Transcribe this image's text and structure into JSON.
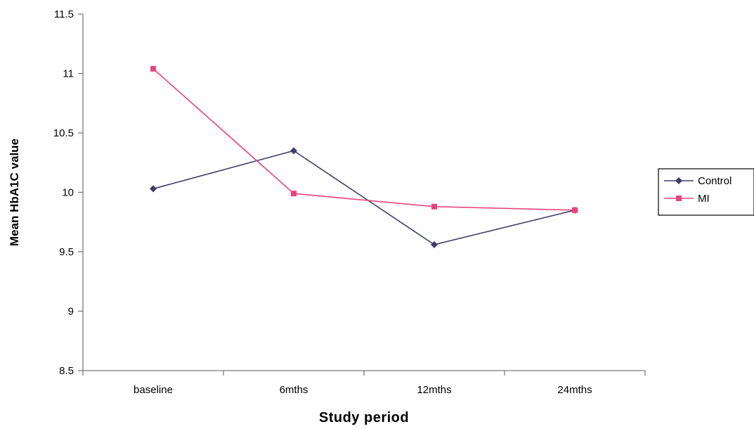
{
  "chart_data": {
    "type": "line",
    "categories": [
      "baseline",
      "6mths",
      "12mths",
      "24mths"
    ],
    "series": [
      {
        "name": "Control",
        "values": [
          10.03,
          10.35,
          9.56,
          9.85
        ],
        "color": "#3d3d66",
        "marker": "diamond"
      },
      {
        "name": "MI",
        "values": [
          11.04,
          9.99,
          9.88,
          9.85
        ],
        "color": "#e8457d",
        "marker": "square"
      }
    ],
    "y_ticks": [
      "11.5",
      "11",
      "10.5",
      "10",
      "9.5",
      "9",
      "8.5"
    ],
    "ylim": [
      8.5,
      11.5
    ],
    "xlabel": "Study period",
    "ylabel": "Mean HbA1C value",
    "legend_position": "right",
    "grid": false
  }
}
